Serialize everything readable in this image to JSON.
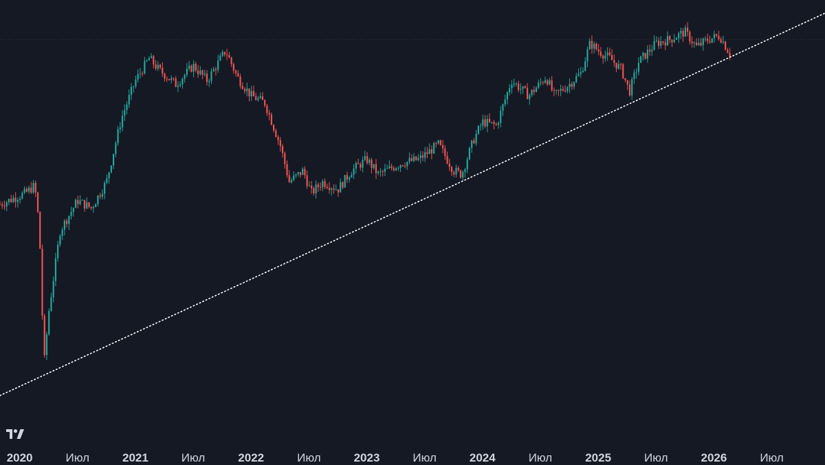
{
  "chart_data": {
    "type": "candlestick",
    "title": "",
    "xlabel": "",
    "ylabel": "",
    "x_tick_labels": [
      "2020",
      "Июл",
      "2021",
      "Июл",
      "2022",
      "Июл",
      "2023",
      "Июл",
      "2024",
      "Июл",
      "2025",
      "Июл",
      "2026",
      "Июл"
    ],
    "x_tick_years": [
      true,
      false,
      true,
      false,
      true,
      false,
      true,
      false,
      true,
      false,
      true,
      false,
      true,
      false
    ],
    "x_range": [
      2019.83,
      2026.96
    ],
    "y_range": [
      0,
      100
    ],
    "grid": false,
    "legend": "none",
    "colors": {
      "up": "#26a69a",
      "down": "#ef5350",
      "background": "#151924",
      "trendline": "#ffffff",
      "price_line": "#3a3f4d",
      "axis_text": "#d1d4dc"
    },
    "series": [
      {
        "kind": "ohlc_weekly_approx",
        "path": [
          [
            2019.83,
            51
          ],
          [
            2020.05,
            54
          ],
          [
            2020.13,
            56
          ],
          [
            2020.17,
            45
          ],
          [
            2020.21,
            8
          ],
          [
            2020.25,
            22
          ],
          [
            2020.35,
            44
          ],
          [
            2020.5,
            52
          ],
          [
            2020.62,
            50
          ],
          [
            2020.75,
            57
          ],
          [
            2020.88,
            74
          ],
          [
            2021.0,
            84
          ],
          [
            2021.12,
            90
          ],
          [
            2021.2,
            87
          ],
          [
            2021.35,
            83
          ],
          [
            2021.5,
            88
          ],
          [
            2021.62,
            84
          ],
          [
            2021.78,
            92
          ],
          [
            2021.88,
            85
          ],
          [
            2022.0,
            80
          ],
          [
            2022.12,
            78
          ],
          [
            2022.25,
            67
          ],
          [
            2022.33,
            57
          ],
          [
            2022.45,
            60
          ],
          [
            2022.52,
            54
          ],
          [
            2022.62,
            57
          ],
          [
            2022.75,
            55
          ],
          [
            2022.87,
            60
          ],
          [
            2023.0,
            63
          ],
          [
            2023.1,
            59
          ],
          [
            2023.3,
            62
          ],
          [
            2023.45,
            63
          ],
          [
            2023.62,
            67
          ],
          [
            2023.75,
            60
          ],
          [
            2023.82,
            59
          ],
          [
            2023.92,
            68
          ],
          [
            2024.0,
            73
          ],
          [
            2024.12,
            72
          ],
          [
            2024.25,
            84
          ],
          [
            2024.4,
            80
          ],
          [
            2024.55,
            85
          ],
          [
            2024.62,
            80
          ],
          [
            2024.75,
            83
          ],
          [
            2024.85,
            86
          ],
          [
            2024.93,
            94
          ],
          [
            2025.0,
            92
          ],
          [
            2025.1,
            90
          ],
          [
            2025.2,
            87
          ],
          [
            2025.27,
            81
          ],
          [
            2025.35,
            89
          ],
          [
            2025.5,
            94
          ],
          [
            2025.62,
            95
          ],
          [
            2025.75,
            97
          ],
          [
            2025.85,
            93
          ],
          [
            2025.95,
            95
          ],
          [
            2026.05,
            96
          ],
          [
            2026.14,
            91
          ]
        ]
      }
    ],
    "trendline": {
      "style": "dotted",
      "start": [
        2019.83,
        0
      ],
      "end": [
        2026.96,
        102
      ]
    },
    "last_price_line": {
      "style": "dotted",
      "y": 95
    }
  }
}
